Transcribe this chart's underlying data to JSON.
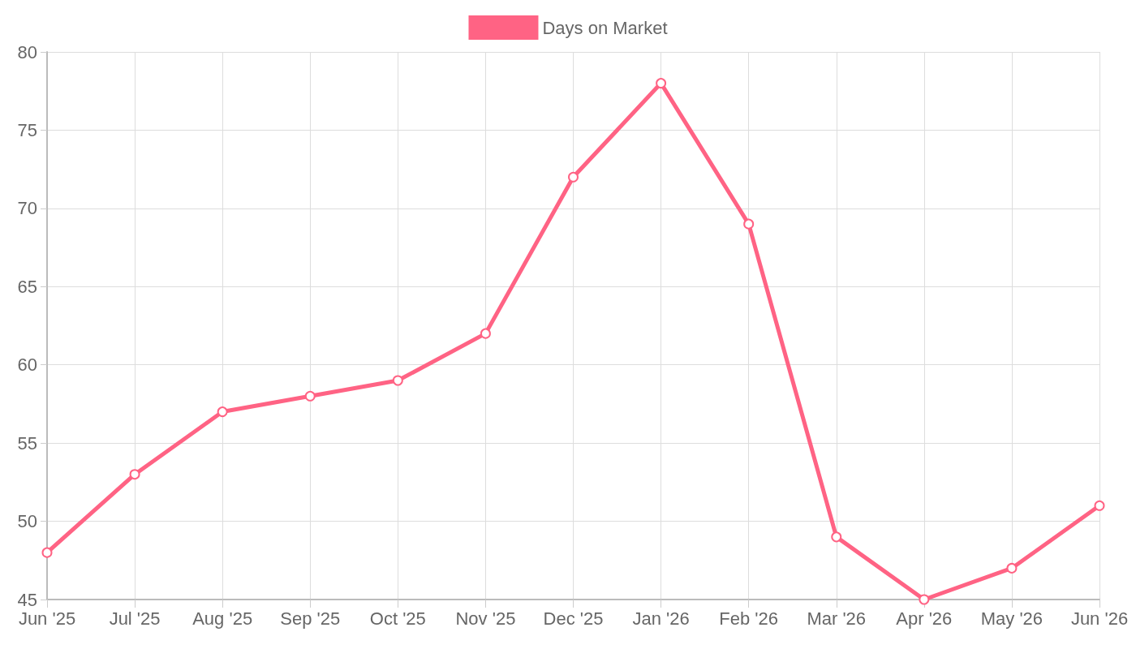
{
  "chart_data": {
    "type": "line",
    "categories": [
      "Jun '25",
      "Jul '25",
      "Aug '25",
      "Sep '25",
      "Oct '25",
      "Nov '25",
      "Dec '25",
      "Jan '26",
      "Feb '26",
      "Mar '26",
      "Apr '26",
      "May '26",
      "Jun '26"
    ],
    "series": [
      {
        "name": "Days on Market",
        "color": "#ff6384",
        "values": [
          48,
          53,
          57,
          58,
          59,
          62,
          72,
          78,
          69,
          49,
          45,
          47,
          51
        ]
      }
    ],
    "ylim": [
      45,
      80
    ],
    "yticks": [
      45,
      50,
      55,
      60,
      65,
      70,
      75,
      80
    ],
    "grid": true,
    "legend": "top",
    "marker": "circle",
    "line_style": "solid"
  }
}
